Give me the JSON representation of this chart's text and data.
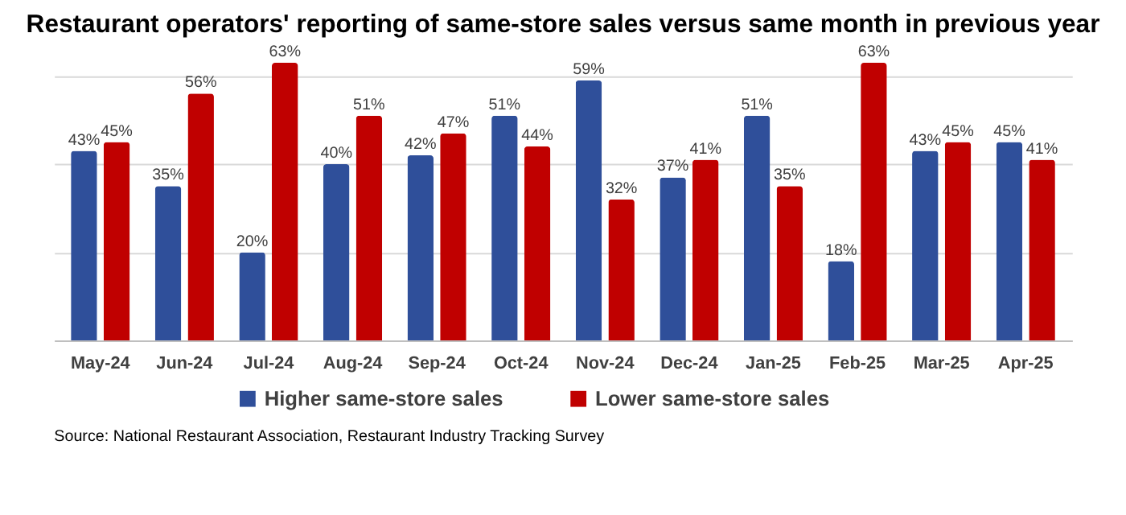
{
  "chart_data": {
    "type": "bar",
    "title": "Restaurant operators' reporting of same-store sales versus same month in previous year",
    "categories": [
      "May-24",
      "Jun-24",
      "Jul-24",
      "Aug-24",
      "Sep-24",
      "Oct-24",
      "Nov-24",
      "Dec-24",
      "Jan-25",
      "Feb-25",
      "Mar-25",
      "Apr-25"
    ],
    "series": [
      {
        "name": "Higher same-store sales",
        "color": "#2f4f9a",
        "values": [
          43,
          35,
          20,
          40,
          42,
          51,
          59,
          37,
          51,
          18,
          43,
          45
        ],
        "value_labels": [
          "43%",
          "35%",
          "20%",
          "40%",
          "42%",
          "51%",
          "59%",
          "37%",
          "51%",
          "18%",
          "43%",
          "45%"
        ]
      },
      {
        "name": "Lower same-store sales",
        "color": "#c00000",
        "values": [
          45,
          56,
          63,
          51,
          47,
          44,
          32,
          41,
          35,
          63,
          45,
          41
        ],
        "value_labels": [
          "45%",
          "56%",
          "63%",
          "51%",
          "47%",
          "44%",
          "32%",
          "41%",
          "35%",
          "63%",
          "45%",
          "41%"
        ]
      }
    ],
    "grid": "y",
    "tick_labels": "x",
    "legend": "bottom",
    "annotations": [
      "Source: National Restaurant Association, Restaurant Industry Tracking Survey"
    ]
  }
}
